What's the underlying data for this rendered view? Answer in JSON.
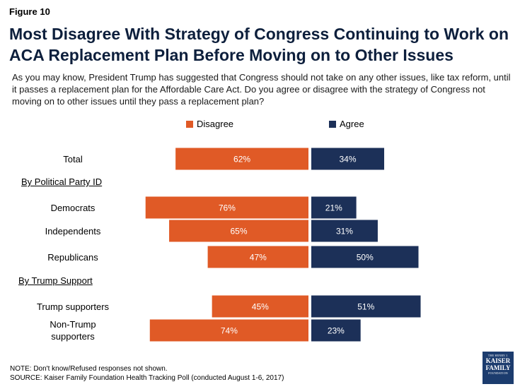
{
  "figure_label": "Figure 10",
  "title": "Most Disagree With Strategy of Congress Continuing to Work on ACA Replacement Plan Before Moving on to Other Issues",
  "subtitle": "As you may know, President Trump has suggested that Congress should not take on any other issues, like tax reform, until it passes a replacement plan for the Affordable Care Act. Do you agree or disagree with the strategy of Congress not moving on to other issues until they pass a replacement plan?",
  "legend": {
    "disagree": "Disagree",
    "agree": "Agree"
  },
  "groups": {
    "party": "By Political Party ID",
    "trump": "By Trump Support"
  },
  "notes": {
    "note": "NOTE: Don't know/Refused responses not shown.",
    "source": "SOURCE: Kaiser Family Foundation Health Tracking Poll (conducted August 1-6, 2017)"
  },
  "logo": {
    "line1": "THE HENRY J.",
    "line2": "KAISER",
    "line3": "FAMILY",
    "line4": "FOUNDATION"
  },
  "colors": {
    "disagree": "#e05a26",
    "agree": "#1c3058",
    "title": "#0d1f3c"
  },
  "chart_data": {
    "type": "bar",
    "orientation": "horizontal-diverging",
    "categories": [
      "Total",
      "Democrats",
      "Independents",
      "Republicans",
      "Trump supporters",
      "Non-Trump supporters"
    ],
    "category_labels": [
      [
        "Total"
      ],
      [
        "Democrats"
      ],
      [
        "Independents"
      ],
      [
        "Republicans"
      ],
      [
        "Trump supporters"
      ],
      [
        "Non-Trump",
        "supporters"
      ]
    ],
    "series": [
      {
        "name": "Disagree",
        "values": [
          62,
          76,
          65,
          47,
          45,
          74
        ],
        "labels": [
          "62%",
          "76%",
          "65%",
          "47%",
          "45%",
          "74%"
        ]
      },
      {
        "name": "Agree",
        "values": [
          34,
          21,
          31,
          50,
          51,
          23
        ],
        "labels": [
          "34%",
          "21%",
          "31%",
          "50%",
          "51%",
          "23%"
        ]
      }
    ],
    "unit": "%",
    "legend_position": "top"
  }
}
